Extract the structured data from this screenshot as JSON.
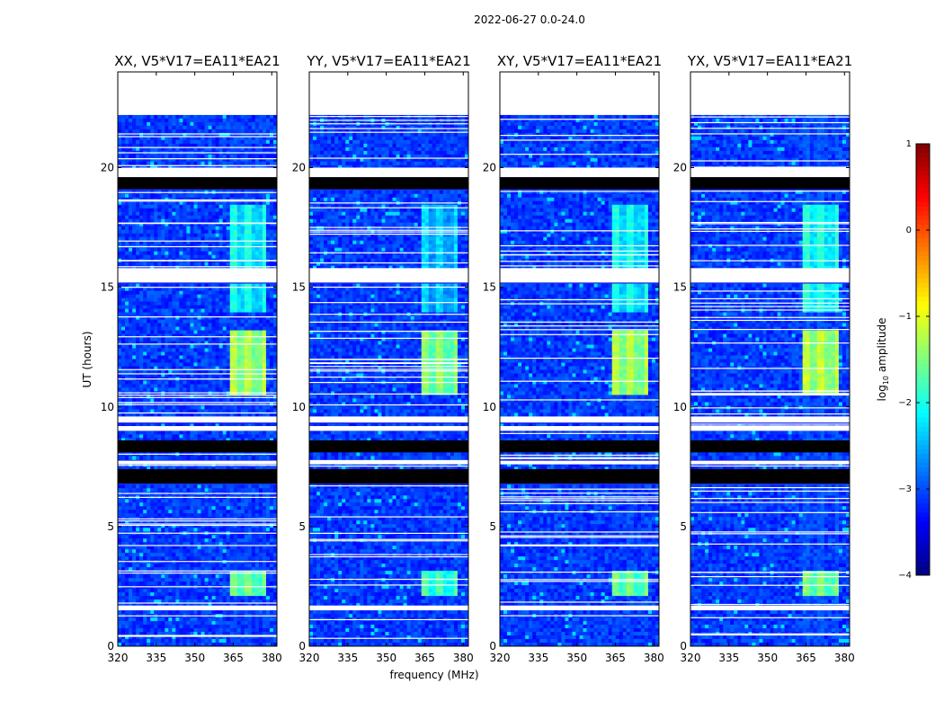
{
  "figure": {
    "suptitle": "2022-06-27 0.0-24.0",
    "colors": {
      "blank": "#ffffff",
      "flagged": "#000000",
      "background": "#1f2ee6",
      "axis": "#000000"
    }
  },
  "chart_data": {
    "type": "heatmap",
    "xlabel": "frequency (MHz)",
    "ylabel": "UT (hours)",
    "xlim": [
      320,
      382
    ],
    "ylim": [
      0,
      24
    ],
    "xticks": [
      320,
      335,
      350,
      365,
      380
    ],
    "yticks": [
      0,
      5,
      10,
      15,
      20
    ],
    "panels": [
      {
        "title": "XX, V5*V17=EA11*EA21",
        "brightness": 1.0
      },
      {
        "title": "YY, V5*V17=EA11*EA21",
        "brightness": 1.15
      },
      {
        "title": "XY, V5*V17=EA11*EA21",
        "brightness": 1.0
      },
      {
        "title": "YX, V5*V17=EA11*EA21",
        "brightness": 0.95
      }
    ],
    "blank_intervals_hours": [
      [
        22.2,
        24.0
      ],
      [
        19.6,
        20.0
      ],
      [
        15.2,
        15.8
      ],
      [
        9.35,
        9.6
      ],
      [
        9.0,
        9.2
      ],
      [
        7.6,
        7.75
      ],
      [
        1.5,
        1.7
      ]
    ],
    "flagged_intervals_hours": [
      [
        19.1,
        19.6
      ],
      [
        8.1,
        8.6
      ],
      [
        6.8,
        7.4
      ]
    ],
    "bright_band_MHz": [
      363,
      378
    ],
    "bright_periods_hours": [
      {
        "range": [
          10.5,
          13.2
        ],
        "level": -1.2
      },
      {
        "range": [
          2.1,
          3.2
        ],
        "level": -1.5
      },
      {
        "range": [
          14.0,
          18.5
        ],
        "level": -2.0
      }
    ],
    "colorbar": {
      "label": "log10 amplitude",
      "label_main": "log",
      "label_sub": "10",
      "label_rest": " amplitude",
      "range": [
        -4,
        1
      ],
      "ticks": [
        1,
        0,
        -1,
        -2,
        -3,
        -4
      ],
      "tick_labels": [
        "1",
        "0",
        "−1",
        "−2",
        "−3",
        "−4"
      ],
      "colormap": "jet"
    }
  }
}
